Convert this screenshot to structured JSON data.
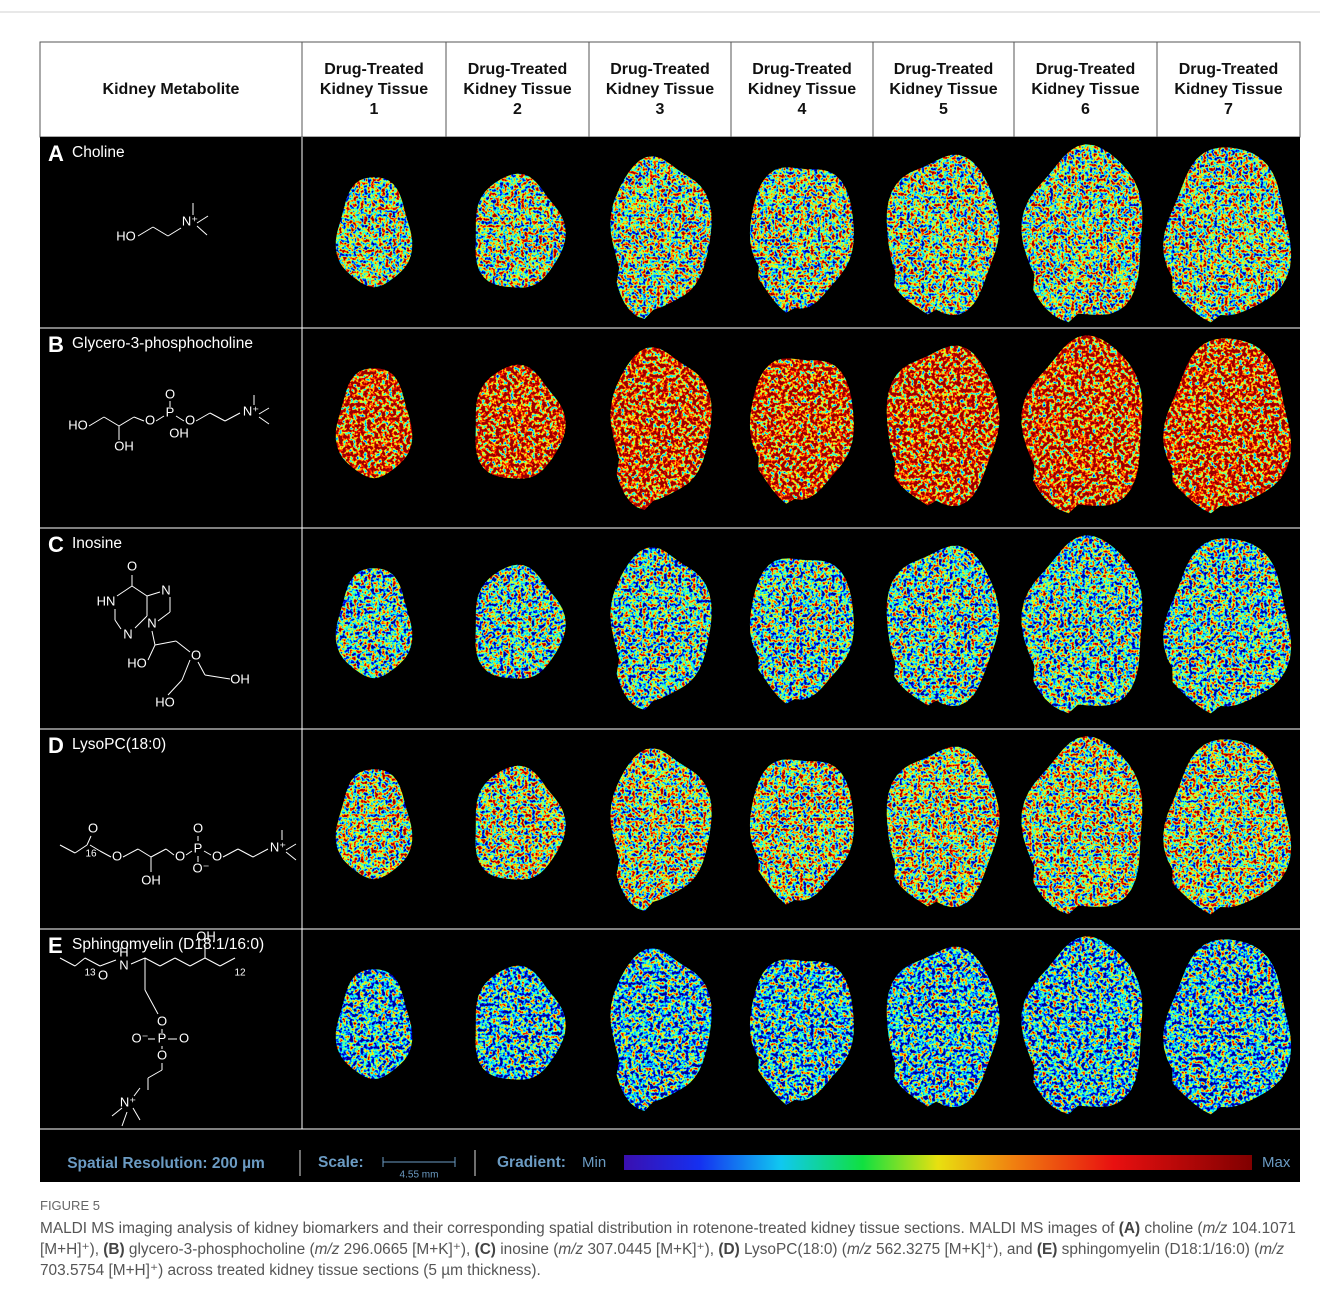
{
  "figure": {
    "header": {
      "metabolite": "Kidney Metabolite",
      "tissues": [
        [
          "Drug-Treated",
          "Kidney Tissue",
          "1"
        ],
        [
          "Drug-Treated",
          "Kidney Tissue",
          "2"
        ],
        [
          "Drug-Treated",
          "Kidney Tissue",
          "3"
        ],
        [
          "Drug-Treated",
          "Kidney Tissue",
          "4"
        ],
        [
          "Drug-Treated",
          "Kidney Tissue",
          "5"
        ],
        [
          "Drug-Treated",
          "Kidney Tissue",
          "6"
        ],
        [
          "Drug-Treated",
          "Kidney Tissue",
          "7"
        ]
      ]
    },
    "rows": [
      {
        "letter": "A",
        "name": "Choline",
        "structure_labels": [
          "HO",
          "N⁺"
        ]
      },
      {
        "letter": "B",
        "name": "Glycero-3-phosphocholine",
        "structure_labels": [
          "HO",
          "OH",
          "O",
          "O",
          "P",
          "O",
          "OH",
          "N⁺"
        ]
      },
      {
        "letter": "C",
        "name": "Inosine",
        "structure_labels": [
          "O",
          "HN",
          "N",
          "N",
          "N",
          "HO",
          "O",
          "OH",
          "HO"
        ]
      },
      {
        "letter": "D",
        "name": "LysoPC(18:0)",
        "structure_labels": [
          "O",
          "16",
          "O",
          "OH",
          "O",
          "O",
          "P",
          "O⁻",
          "O",
          "N⁺"
        ]
      },
      {
        "letter": "E",
        "name": "Sphingomyelin (D18:1/16:0)",
        "structure_labels": [
          "13",
          "H",
          "N",
          "OH",
          "12",
          "O",
          "O",
          "O⁻",
          "P",
          "O",
          "O",
          "N⁺"
        ]
      }
    ],
    "footer": {
      "resolution": "Spatial Resolution: 200 µm",
      "scale": "Scale:",
      "scale_length": "4.55 mm",
      "gradient": "Gradient:",
      "min": "Min",
      "max": "Max"
    },
    "caption": {
      "label": "FIGURE 5",
      "runs": [
        {
          "text": "MALDI MS imaging analysis of kidney biomarkers and their corresponding spatial distribution in rotenone-treated kidney tissue sections. MALDI MS images of "
        },
        {
          "text": "(A)",
          "style": "bold"
        },
        {
          "text": " choline ("
        },
        {
          "text": "m/z",
          "style": "italic"
        },
        {
          "text": " 104.1071 [M+H]⁺), "
        },
        {
          "text": "(B)",
          "style": "bold"
        },
        {
          "text": " glycero-3-phosphocholine ("
        },
        {
          "text": "m/z",
          "style": "italic"
        },
        {
          "text": " 296.0665 [M+K]⁺), "
        },
        {
          "text": "(C)",
          "style": "bold"
        },
        {
          "text": " inosine ("
        },
        {
          "text": "m/z",
          "style": "italic"
        },
        {
          "text": " 307.0445 [M+K]⁺), "
        },
        {
          "text": "(D)",
          "style": "bold"
        },
        {
          "text": " LysoPC(18:0) ("
        },
        {
          "text": "m/z",
          "style": "italic"
        },
        {
          "text": " 562.3275 [M+K]⁺), and "
        },
        {
          "text": "(E)",
          "style": "bold"
        },
        {
          "text": " sphingomyelin (D18:1/16:0) ("
        },
        {
          "text": "m/z",
          "style": "italic"
        },
        {
          "text": " 703.5754 [M+H]⁺) across treated kidney tissue sections (5 µm thickness)."
        }
      ]
    }
  }
}
